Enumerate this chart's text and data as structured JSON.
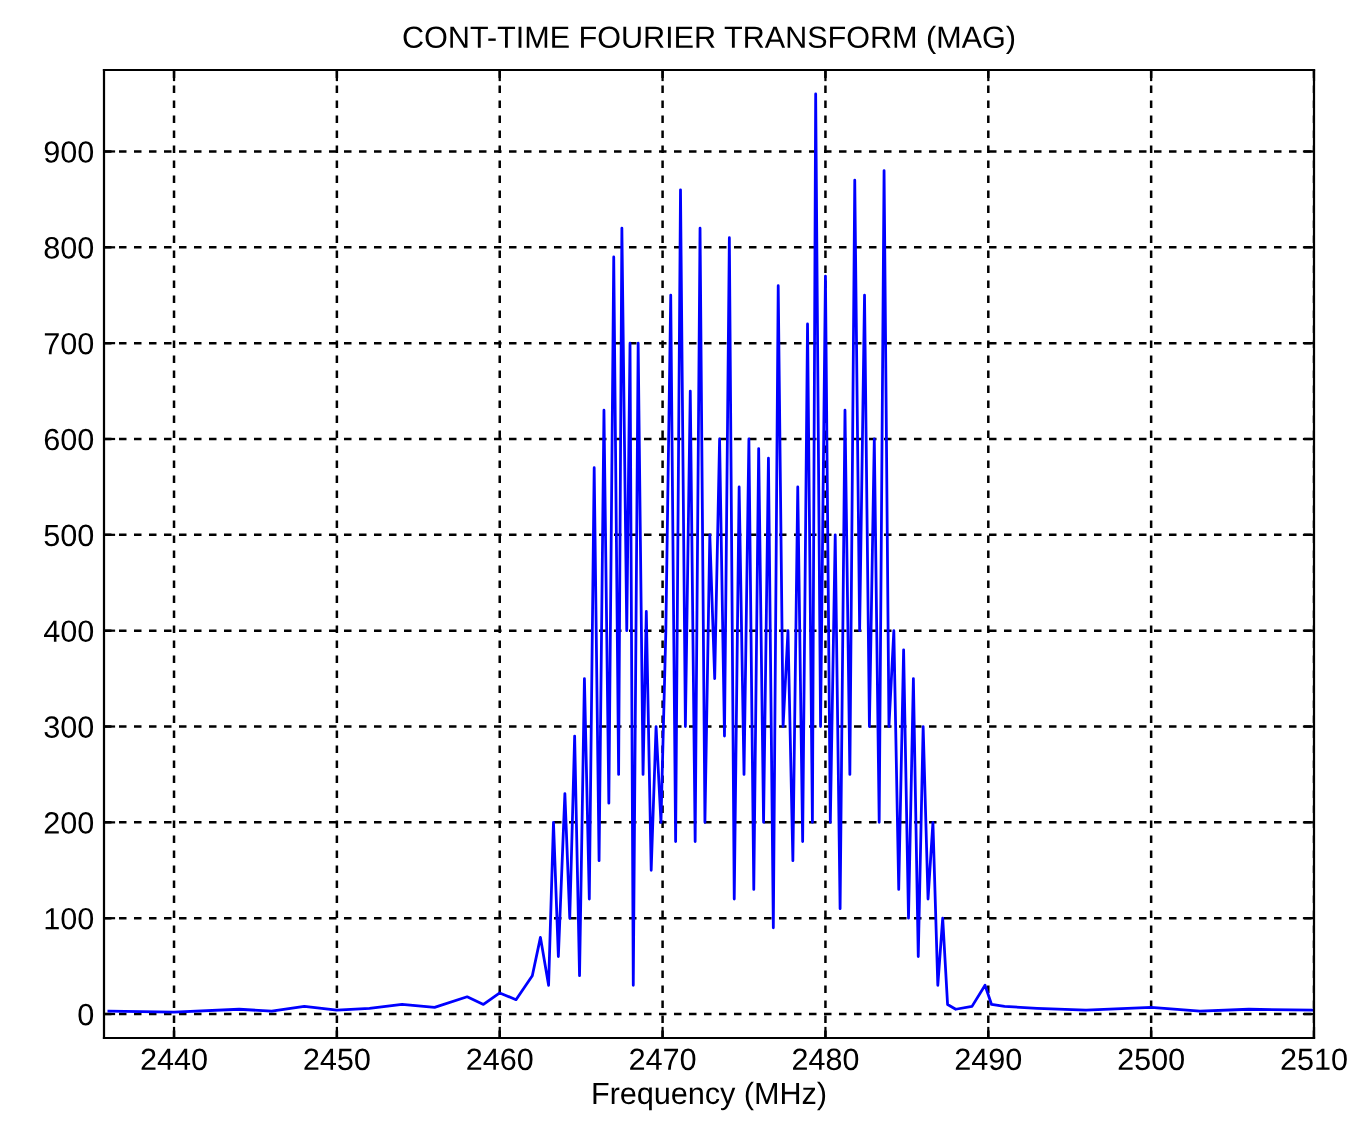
{
  "chart_data": {
    "type": "line",
    "title": "CONT-TIME FOURIER TRANSFORM (MAG)",
    "xlabel": "Frequency (MHz)",
    "xlim": [
      2435.7,
      2510
    ],
    "xticks": [
      2440,
      2450,
      2460,
      2470,
      2480,
      2490,
      2500,
      2510
    ],
    "ylim": [
      -25,
      985
    ],
    "yticks": [
      0,
      100,
      200,
      300,
      400,
      500,
      600,
      700,
      800,
      900
    ],
    "grid": true,
    "marker": "none",
    "line_style": "solid",
    "series": [
      {
        "color": "#0000ff",
        "x": [
          2436,
          2440,
          2444,
          2446,
          2448,
          2450,
          2452,
          2454,
          2456,
          2458,
          2459,
          2460,
          2461,
          2462,
          2462.5,
          2463,
          2463.3,
          2463.6,
          2464,
          2464.3,
          2464.6,
          2464.9,
          2465.2,
          2465.5,
          2465.8,
          2466.1,
          2466.4,
          2466.7,
          2467,
          2467.3,
          2467.5,
          2467.8,
          2468,
          2468.2,
          2468.5,
          2468.8,
          2469,
          2469.3,
          2469.6,
          2469.9,
          2470.2,
          2470.5,
          2470.8,
          2471.1,
          2471.4,
          2471.7,
          2472,
          2472.3,
          2472.6,
          2472.9,
          2473.2,
          2473.5,
          2473.8,
          2474.1,
          2474.4,
          2474.7,
          2475,
          2475.3,
          2475.6,
          2475.9,
          2476.2,
          2476.5,
          2476.8,
          2477.1,
          2477.4,
          2477.7,
          2478,
          2478.3,
          2478.6,
          2478.9,
          2479.2,
          2479.4,
          2479.7,
          2480,
          2480.3,
          2480.6,
          2480.9,
          2481.2,
          2481.5,
          2481.8,
          2482.1,
          2482.4,
          2482.7,
          2483,
          2483.3,
          2483.6,
          2483.9,
          2484.2,
          2484.5,
          2484.8,
          2485.1,
          2485.4,
          2485.7,
          2486,
          2486.3,
          2486.6,
          2486.9,
          2487.2,
          2487.5,
          2488,
          2489,
          2489.8,
          2490.2,
          2491,
          2493,
          2496,
          2500,
          2503,
          2506,
          2510
        ],
        "values": [
          3,
          2,
          5,
          3,
          8,
          4,
          6,
          10,
          7,
          18,
          10,
          22,
          15,
          40,
          80,
          30,
          200,
          60,
          230,
          100,
          290,
          40,
          350,
          120,
          570,
          160,
          630,
          220,
          790,
          250,
          820,
          400,
          700,
          30,
          700,
          250,
          420,
          150,
          300,
          200,
          400,
          750,
          180,
          860,
          300,
          650,
          180,
          820,
          200,
          500,
          350,
          600,
          290,
          810,
          120,
          550,
          250,
          600,
          130,
          590,
          200,
          580,
          90,
          760,
          300,
          400,
          160,
          550,
          180,
          720,
          200,
          960,
          300,
          770,
          200,
          500,
          110,
          630,
          250,
          870,
          400,
          750,
          300,
          600,
          200,
          880,
          300,
          400,
          130,
          380,
          100,
          350,
          60,
          300,
          120,
          200,
          30,
          100,
          10,
          5,
          8,
          30,
          10,
          8,
          6,
          4,
          7,
          3,
          5,
          4
        ]
      }
    ]
  }
}
